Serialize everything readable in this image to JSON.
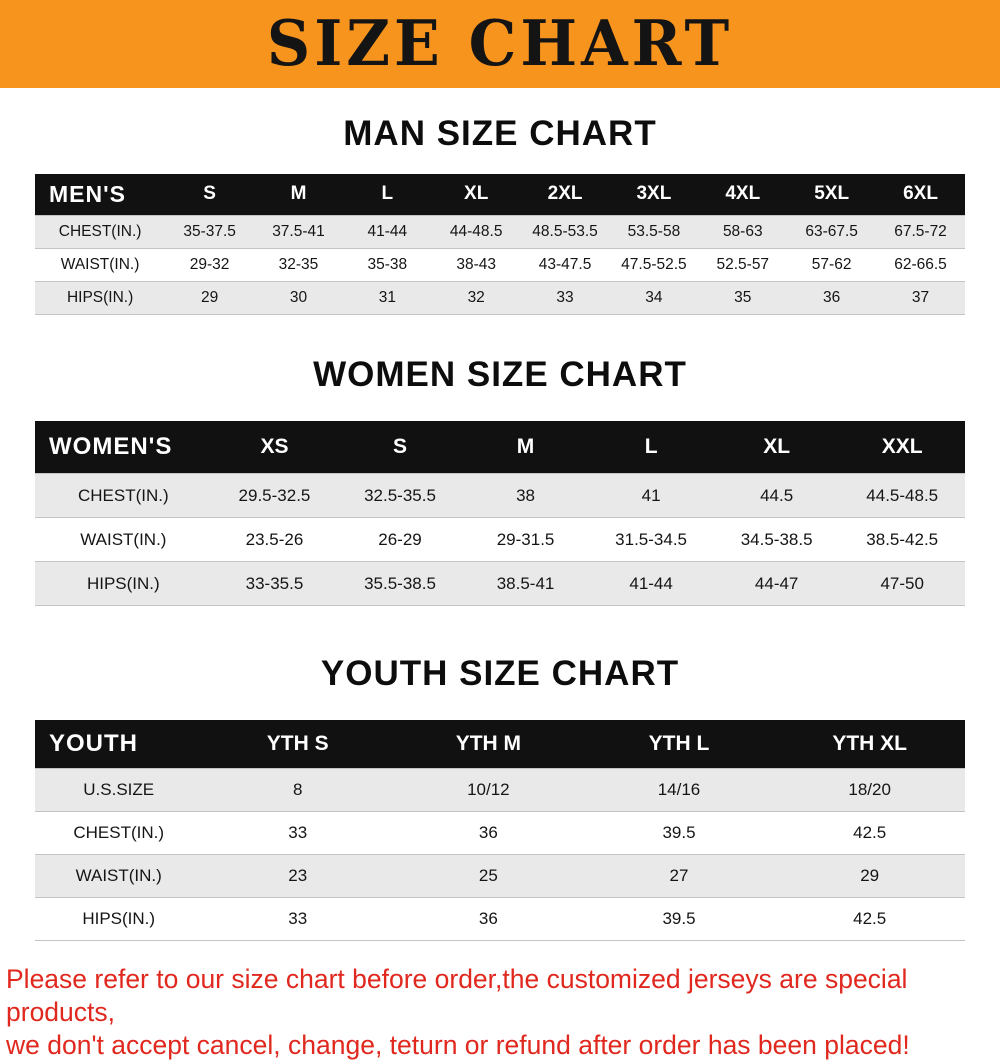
{
  "banner": {
    "title": "SIZE CHART",
    "bg_color": "#f7941d",
    "text_color": "#141414"
  },
  "sections": [
    {
      "heading": "MAN SIZE CHART",
      "table": {
        "header": [
          "MEN'S",
          "S",
          "M",
          "L",
          "XL",
          "2XL",
          "3XL",
          "4XL",
          "5XL",
          "6XL"
        ],
        "rows": [
          [
            "CHEST(IN.)",
            "35-37.5",
            "37.5-41",
            "41-44",
            "44-48.5",
            "48.5-53.5",
            "53.5-58",
            "58-63",
            "63-67.5",
            "67.5-72"
          ],
          [
            "WAIST(IN.)",
            "29-32",
            "32-35",
            "35-38",
            "38-43",
            "43-47.5",
            "47.5-52.5",
            "52.5-57",
            "57-62",
            "62-66.5"
          ],
          [
            "HIPS(IN.)",
            "29",
            "30",
            "31",
            "32",
            "33",
            "34",
            "35",
            "36",
            "37"
          ]
        ]
      }
    },
    {
      "heading": "WOMEN SIZE CHART",
      "table": {
        "header": [
          "WOMEN'S",
          "XS",
          "S",
          "M",
          "L",
          "XL",
          "XXL"
        ],
        "rows": [
          [
            "CHEST(IN.)",
            "29.5-32.5",
            "32.5-35.5",
            "38",
            "41",
            "44.5",
            "44.5-48.5"
          ],
          [
            "WAIST(IN.)",
            "23.5-26",
            "26-29",
            "29-31.5",
            "31.5-34.5",
            "34.5-38.5",
            "38.5-42.5"
          ],
          [
            "HIPS(IN.)",
            "33-35.5",
            "35.5-38.5",
            "38.5-41",
            "41-44",
            "44-47",
            "47-50"
          ]
        ]
      }
    },
    {
      "heading": "YOUTH SIZE CHART",
      "table": {
        "header": [
          "YOUTH",
          "YTH S",
          "YTH M",
          "YTH L",
          "YTH XL"
        ],
        "rows": [
          [
            "U.S.SIZE",
            "8",
            "10/12",
            "14/16",
            "18/20"
          ],
          [
            "CHEST(IN.)",
            "33",
            "36",
            "39.5",
            "42.5"
          ],
          [
            "WAIST(IN.)",
            "23",
            "25",
            "27",
            "29"
          ],
          [
            "HIPS(IN.)",
            "33",
            "36",
            "39.5",
            "42.5"
          ]
        ]
      }
    }
  ],
  "footer": {
    "line1": "Please refer to our size chart before order,the customized jerseys are special products,",
    "line2": "we don't accept cancel, change, teturn or refund after order has been placed!"
  }
}
